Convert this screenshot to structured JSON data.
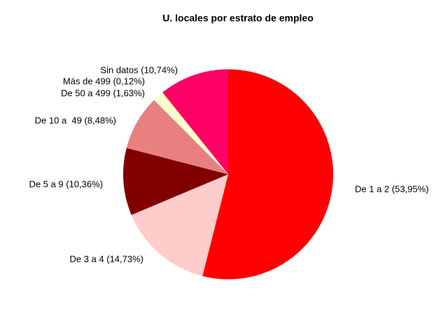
{
  "chart_data": {
    "type": "pie",
    "title": "U. locales por estrato de empleo",
    "categories": [
      "De 1 a 2 (53,95%)",
      "De 3 a 4 (14,73%)",
      "De 5 a 9 (10,36%)",
      "De 10 a  49 (8,48%)",
      "De 50 a 499 (1,63%)",
      "Más de 499 (0,12%)",
      "Sin datos (10,74%)"
    ],
    "values": [
      53.95,
      14.73,
      10.36,
      8.48,
      1.63,
      0.12,
      10.74
    ],
    "colors": [
      "#ff0000",
      "#ffcccc",
      "#800000",
      "#e88080",
      "#ffffcc",
      "#e8e070",
      "#ff0066"
    ]
  }
}
